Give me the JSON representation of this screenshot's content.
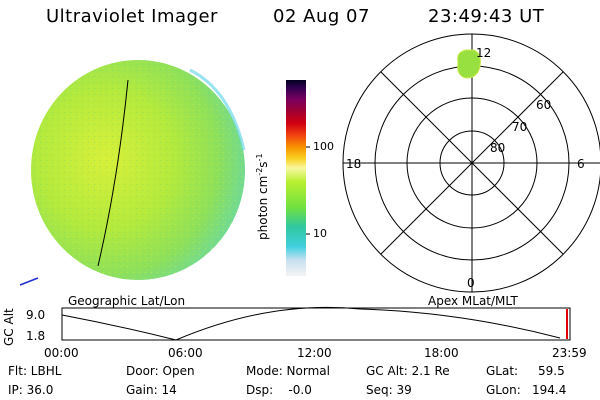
{
  "header": {
    "instrument": "Ultraviolet Imager",
    "date": "02 Aug 07",
    "time": "23:49:43 UT"
  },
  "colorbar": {
    "unit_label": "photon cm",
    "unit_exp1": "-2",
    "unit_mid": "s",
    "unit_exp2": "-1",
    "ticks": [
      "100",
      "10"
    ]
  },
  "polar_plot": {
    "mlt_labels": [
      "12",
      "18",
      "6",
      "0"
    ],
    "mlat_labels": [
      "60",
      "70",
      "80"
    ]
  },
  "orbit_panel": {
    "left_caption": "Geographic Lat/Lon",
    "right_caption": "Apex MLat/MLT",
    "y_label": "GC Alt",
    "y_ticks": [
      "9.0",
      "1.8"
    ],
    "x_ticks": [
      "00:00",
      "06:00",
      "12:00",
      "18:00",
      "23:59"
    ]
  },
  "status": {
    "flt": "Flt: LBHL",
    "ip": "IP: 36.0",
    "door": "Door: Open",
    "gain": "Gain: 14",
    "mode": "Mode: Normal",
    "dsp": "Dsp:    -0.0",
    "gc_alt": "GC Alt: 2.1 Re",
    "seq": "Seq: 39",
    "glat_label": "GLat:",
    "glat_value": "59.5",
    "glon_label": "GLon:",
    "glon_value": "194.4"
  },
  "colors": {
    "disk_main": "#9ee84a",
    "disk_light": "#d4f23a",
    "disk_cool": "#6ed8b0"
  }
}
